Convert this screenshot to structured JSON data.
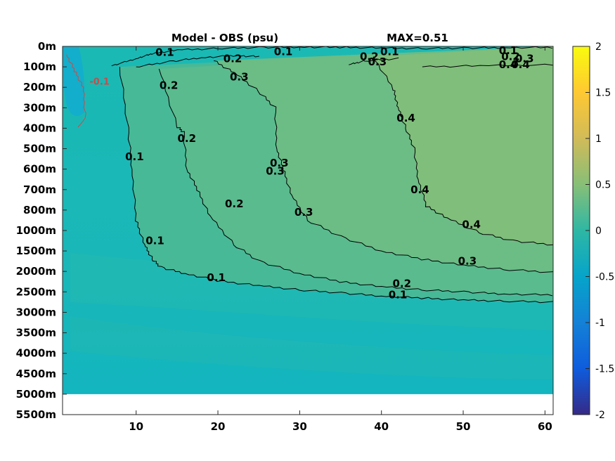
{
  "chart_data": {
    "type": "heatmap",
    "title": "Model - OBS (psu)",
    "annotation": "MAX=0.51",
    "xlim": [
      1,
      61
    ],
    "xticks": [
      10,
      20,
      30,
      40,
      50,
      60
    ],
    "xtick_labels": [
      "10",
      "20",
      "30",
      "40",
      "50",
      "60"
    ],
    "ytick_labels": [
      "0m",
      "100m",
      "200m",
      "300m",
      "400m",
      "500m",
      "600m",
      "700m",
      "800m",
      "1000m",
      "1500m",
      "2000m",
      "2500m",
      "3000m",
      "3500m",
      "4000m",
      "4500m",
      "5000m",
      "5500m"
    ],
    "data_bottom_label": "5000m",
    "colorbar": {
      "range": [
        -2,
        2
      ],
      "ticks": [
        2,
        1.5,
        1,
        0.5,
        0,
        -0.5,
        -1,
        -1.5,
        -2
      ],
      "tick_labels": [
        "2",
        "1.5",
        "1",
        "0.5",
        "0",
        "-0.5",
        "-1",
        "-1.5",
        "-2"
      ],
      "colormap": "parula",
      "stops": [
        "#352a87",
        "#0f5cdd",
        "#1481d6",
        "#06a4ca",
        "#2eb7a4",
        "#87bf77",
        "#d1bb59",
        "#fec832",
        "#f9fb0e"
      ]
    },
    "contours": [
      {
        "level": 0.1,
        "points": [
          [
            8,
            1
          ],
          [
            9,
            4
          ],
          [
            9.5,
            6
          ],
          [
            10,
            8.5
          ],
          [
            11,
            9.7
          ],
          [
            12,
            10.4
          ],
          [
            13,
            10.8
          ],
          [
            16,
            11.1
          ],
          [
            20,
            11.45
          ],
          [
            25,
            11.7
          ],
          [
            30,
            11.9
          ],
          [
            35,
            12.05
          ],
          [
            40,
            12.2
          ],
          [
            45,
            12.3
          ],
          [
            50,
            12.4
          ],
          [
            55,
            12.45
          ],
          [
            61,
            12.5
          ]
        ],
        "labels": [
          [
            9.8,
            5.4
          ],
          [
            12.3,
            9.5
          ],
          [
            19.8,
            11.3
          ],
          [
            42,
            12.15
          ]
        ]
      },
      {
        "level": 0.2,
        "points": [
          [
            12.8,
            1.1
          ],
          [
            15,
            3.9
          ],
          [
            15.8,
            4.2
          ],
          [
            16.2,
            6
          ],
          [
            17.5,
            7
          ],
          [
            19,
            8.3
          ],
          [
            22,
            9.7
          ],
          [
            25,
            10.5
          ],
          [
            30,
            11.1
          ],
          [
            35,
            11.5
          ],
          [
            40,
            11.75
          ],
          [
            45,
            11.9
          ],
          [
            50,
            12
          ],
          [
            55,
            12.1
          ],
          [
            61,
            12.15
          ]
        ],
        "labels": [
          [
            14,
            1.9
          ],
          [
            16.2,
            4.5
          ],
          [
            22,
            7.7
          ],
          [
            42.5,
            11.6
          ]
        ]
      },
      {
        "level": 0.3,
        "points": [
          [
            19.5,
            0.7
          ],
          [
            22,
            1.3
          ],
          [
            25,
            2.2
          ],
          [
            27,
            3
          ],
          [
            27.2,
            5
          ],
          [
            28,
            6
          ],
          [
            29,
            7.3
          ],
          [
            31,
            8.5
          ],
          [
            35,
            9.3
          ],
          [
            40,
            10
          ],
          [
            45,
            10.4
          ],
          [
            50,
            10.7
          ],
          [
            55,
            10.9
          ],
          [
            61,
            11.05
          ]
        ],
        "labels": [
          [
            22.6,
            1.5
          ],
          [
            27.5,
            5.7
          ],
          [
            27,
            6.1
          ],
          [
            30.5,
            8.1
          ],
          [
            50.5,
            10.5
          ]
        ]
      },
      {
        "level": 0.4,
        "points": [
          [
            39,
            0.5
          ],
          [
            41.5,
            2.1
          ],
          [
            42,
            3
          ],
          [
            43,
            4
          ],
          [
            44,
            5
          ],
          [
            44.5,
            6.5
          ],
          [
            45.5,
            7.8
          ],
          [
            48,
            8.4
          ],
          [
            52,
            9.1
          ],
          [
            56,
            9.5
          ],
          [
            61,
            9.7
          ]
        ],
        "labels": [
          [
            43,
            3.5
          ],
          [
            44.7,
            7
          ],
          [
            51,
            8.7
          ],
          [
            57,
            0.9
          ]
        ]
      },
      {
        "level": 0.1,
        "points": [
          [
            7,
            0.95
          ],
          [
            10,
            0.6
          ],
          [
            12,
            0.35
          ],
          [
            15,
            0.18
          ],
          [
            20,
            0.1
          ],
          [
            25,
            0.05
          ],
          [
            30,
            0.03
          ],
          [
            35,
            0.04
          ],
          [
            40,
            0.08
          ],
          [
            45,
            0.1
          ],
          [
            50,
            0.08
          ],
          [
            55,
            0.06
          ],
          [
            61,
            0.05
          ]
        ],
        "labels": [
          [
            13.5,
            0.3
          ],
          [
            28,
            0.25
          ],
          [
            41,
            0.25
          ],
          [
            55.5,
            0.2
          ]
        ]
      },
      {
        "level": 0.2,
        "points": [
          [
            10,
            1
          ],
          [
            14,
            0.75
          ],
          [
            18,
            0.55
          ],
          [
            22,
            0.45
          ],
          [
            25,
            0.5
          ]
        ],
        "labels": [
          [
            21.8,
            0.6
          ],
          [
            38.5,
            0.5
          ],
          [
            55.8,
            0.5
          ]
        ]
      },
      {
        "level": 0.3,
        "points": [
          [
            36,
            0.9
          ],
          [
            38,
            0.7
          ],
          [
            42,
            0.6
          ]
        ],
        "labels": [
          [
            39.5,
            0.75
          ],
          [
            57.5,
            0.6
          ]
        ]
      },
      {
        "level": 0.4,
        "points": [
          [
            45,
            1.0
          ],
          [
            52,
            0.95
          ],
          [
            61,
            0.9
          ]
        ],
        "labels": [
          [
            55.5,
            0.9
          ]
        ]
      },
      {
        "level": -0.1,
        "points": [
          [
            1.5,
            0.4
          ],
          [
            2.5,
            1.2
          ],
          [
            3.5,
            2
          ],
          [
            3.8,
            3.5
          ],
          [
            2.8,
            4
          ]
        ],
        "labels": [
          [
            4.3,
            1.7
          ]
        ],
        "color": "red"
      }
    ]
  }
}
